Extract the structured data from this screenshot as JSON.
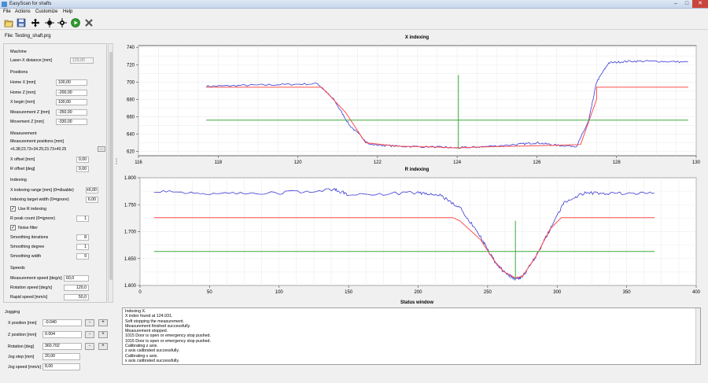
{
  "window": {
    "title": "EasyScan for shafts",
    "minimize": "–",
    "maximize": "□",
    "close": "✕"
  },
  "menu": [
    "File",
    "Actions",
    "Customize",
    "Help"
  ],
  "toolbar": [
    "open-icon",
    "save-icon",
    "move-icon",
    "reference-x-icon",
    "reference-z-icon",
    "play-icon",
    "stop-icon"
  ],
  "file_label": "File: Testing_shaft.prg",
  "left_panel": {
    "machine_title": "Machine",
    "laser_x_label": "Laser-X distance [mm]",
    "laser_x_value": "129,80",
    "positions_title": "Positions",
    "home_x_label": "Home X [mm]",
    "home_x_value": "100,00",
    "home_z_label": "Home Z [mm]",
    "home_z_value": "-200,00",
    "x_begin_label": "X begin [mm]",
    "x_begin_value": "100,00",
    "meas_z_label": "Measurement Z [mm]",
    "meas_z_value": "-350,00",
    "move_z_label": "Movement Z [mm]",
    "move_z_value": "-330,00",
    "measurement_title": "Measurement",
    "meas_positions_label": "Measurement positions [mm]",
    "meas_positions_value": "+6.38;23.73+34.25;23.73+40.25",
    "meas_positions_btn": "...",
    "x_offset_label": "X offset [mm]",
    "x_offset_value": "0,00",
    "r_offset_label": "R offset [deg]",
    "r_offset_value": "0,00",
    "indexing_title": "Indexing",
    "x_range_label": "X indexing range [mm] (0=disable)",
    "x_range_value": "±6,00",
    "target_width_label": "Indexing target width (0=ignore)",
    "target_width_value": "6,00",
    "use_r_label": "Use R indexing",
    "r_peak_label": "R peak count (0=ignore)",
    "r_peak_value": "1",
    "noise_label": "Noise filter",
    "smooth_iter_label": "Smoothing iterations",
    "smooth_iter_value": "8",
    "smooth_deg_label": "Smoothing degree",
    "smooth_deg_value": "1",
    "smooth_width_label": "Smoothing width",
    "smooth_width_value": "9",
    "speeds_title": "Speeds",
    "meas_speed_label": "Measurement speed [deg/s]",
    "meas_speed_value": "60,0",
    "rot_speed_label": "Rotation speed [deg/s]",
    "rot_speed_value": "120,0",
    "rapid_speed_label": "Rapid speed [mm/s]",
    "rapid_speed_value": "50,0"
  },
  "jogging": {
    "title": "Jogging",
    "x_label": "X position [mm]",
    "x_value": "-0.040",
    "z_label": "Z position [mm]",
    "z_value": "0.004",
    "rot_label": "Rotation [deg]",
    "rot_value": "360.702",
    "step_label": "Jog step [mm]",
    "step_value": "20,00",
    "speed_label": "Jog speed [mm/s]",
    "speed_value": "8,00",
    "minus": "-",
    "plus": "+"
  },
  "status": {
    "title": "Status window",
    "lines": [
      "Indexing X.",
      "X index found at 124.031.",
      "Soft stopping the measurement.",
      "Measurement finished successfully.",
      "Measurement stopped.",
      "1015 Door is open or emergency stop pushed.",
      "1015 Door is open or emergency stop pushed.",
      "Calibrating z axis.",
      "z axis calibrated successfully.",
      "Calibrating x axis.",
      "x axis calibrated successfully."
    ]
  },
  "colors": {
    "measured": "#3b3bd6",
    "smoothed": "#ff4d4d",
    "reference": "#3caa3c"
  },
  "chart_data": [
    {
      "type": "line",
      "title": "X indexing",
      "xlim": [
        116,
        130
      ],
      "ylim": [
        615,
        742
      ],
      "xticks": [
        116,
        118,
        120,
        122,
        124,
        126,
        128,
        130
      ],
      "yticks": [
        620,
        640,
        660,
        680,
        700,
        720,
        740
      ],
      "series": [
        {
          "role": "measured",
          "x": [
            117.7,
            118.5,
            119.5,
            120.5,
            120.9,
            121.3,
            121.8,
            122.5,
            123.5,
            124.0,
            124.5,
            125.5,
            126.0,
            126.5,
            127.0,
            127.3,
            127.5,
            127.8,
            128.3,
            129.0,
            129.8
          ],
          "y": [
            695,
            696,
            697,
            698,
            680,
            650,
            628,
            626,
            625,
            624,
            625,
            628,
            630,
            627,
            626,
            655,
            700,
            722,
            724,
            724,
            723
          ]
        },
        {
          "role": "smoothed",
          "x": [
            117.7,
            120.6,
            121.2,
            121.7,
            122.5,
            123.5,
            124.0,
            124.5,
            125.5,
            126.5,
            127.1,
            127.5,
            127.5,
            129.8
          ],
          "y": [
            694,
            694,
            665,
            630,
            626,
            625,
            624,
            625,
            626,
            627,
            628,
            680,
            694,
            694
          ]
        },
        {
          "role": "reference",
          "x": [
            117.7,
            129.8
          ],
          "y": [
            656,
            656
          ]
        },
        {
          "role": "reference",
          "x": [
            124.03,
            124.03
          ],
          "y": [
            623,
            708
          ]
        }
      ]
    },
    {
      "type": "line",
      "title": "R indexing",
      "xlim": [
        0,
        400
      ],
      "ylim": [
        1.6,
        1.8
      ],
      "xticks": [
        0,
        50,
        100,
        150,
        200,
        250,
        300,
        350,
        400
      ],
      "yticks": [
        "1.600",
        "1.650",
        "1.700",
        "1.750",
        "1.800"
      ],
      "series": [
        {
          "role": "measured",
          "x": [
            10,
            50,
            100,
            140,
            150,
            200,
            215,
            230,
            245,
            255,
            262,
            270,
            275,
            285,
            295,
            305,
            320,
            340,
            370
          ],
          "y": [
            1.776,
            1.771,
            1.772,
            1.778,
            1.769,
            1.772,
            1.768,
            1.745,
            1.69,
            1.645,
            1.625,
            1.612,
            1.616,
            1.655,
            1.705,
            1.755,
            1.772,
            1.771,
            1.771
          ]
        },
        {
          "role": "smoothed",
          "x": [
            10,
            225,
            230,
            245,
            255,
            262,
            270,
            275,
            285,
            295,
            303,
            303,
            370
          ],
          "y": [
            1.726,
            1.726,
            1.72,
            1.685,
            1.645,
            1.625,
            1.614,
            1.617,
            1.655,
            1.705,
            1.726,
            1.726,
            1.726
          ]
        },
        {
          "role": "reference",
          "x": [
            10,
            370
          ],
          "y": [
            1.663,
            1.663
          ]
        },
        {
          "role": "reference",
          "x": [
            270,
            270
          ],
          "y": [
            1.612,
            1.72
          ]
        }
      ]
    }
  ]
}
